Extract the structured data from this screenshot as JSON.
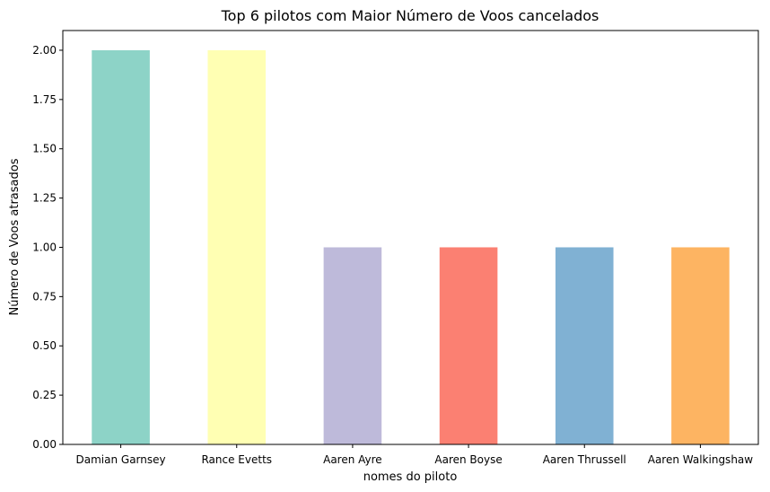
{
  "chart_data": {
    "type": "bar",
    "title": "Top 6 pilotos com Maior Número de Voos cancelados",
    "xlabel": "nomes do piloto",
    "ylabel": "Número de Voos atrasados",
    "categories": [
      "Damian Garnsey",
      "Rance Evetts",
      "Aaren Ayre",
      "Aaren Boyse",
      "Aaren Thrussell",
      "Aaren Walkingshaw"
    ],
    "values": [
      2,
      2,
      1,
      1,
      1,
      1
    ],
    "colors": [
      "#8dd3c7",
      "#ffffb3",
      "#bebada",
      "#fb8072",
      "#80b1d3",
      "#fdb462"
    ],
    "ylim": [
      0,
      2.1
    ],
    "yticks": [
      "0.00",
      "0.25",
      "0.50",
      "0.75",
      "1.00",
      "1.25",
      "1.50",
      "1.75",
      "2.00"
    ],
    "grid": false,
    "legend": "none"
  }
}
